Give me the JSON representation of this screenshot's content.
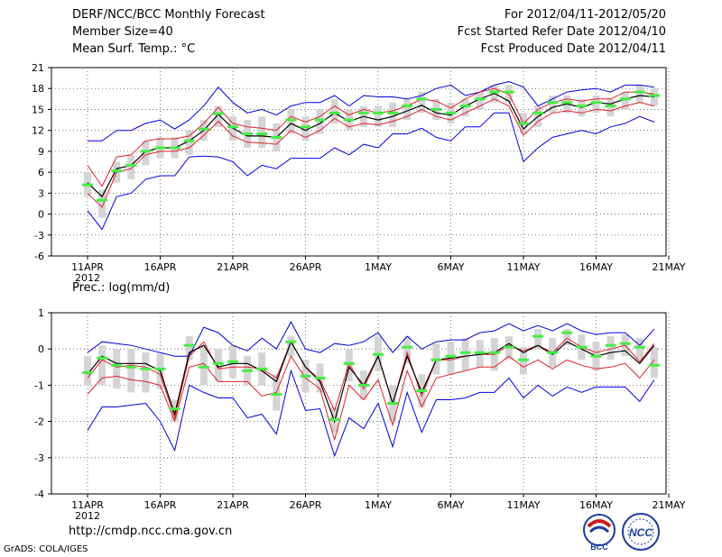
{
  "header": {
    "title": "DERF/NCC/BCC Monthly Forecast",
    "member_size": "Member Size=40",
    "variable": "Mean Surf. Temp.: °C",
    "period": "For 2012/04/11-2012/05/20",
    "started": "Fcst Started Refer Date 2012/04/10",
    "produced": "Fcst Produced Date 2012/04/11"
  },
  "footer": {
    "url": "http://cmdp.ncc.cma.gov.cn",
    "credit": "GrADS: COLA/IGES",
    "logo_left_text": "BCC",
    "logo_right_text": "NCC"
  },
  "colors": {
    "ensemble_bar": "#d4d4d4",
    "marker": "#44ee44",
    "mean_line": "#000000",
    "spread_line": "#e0202a",
    "extreme_line": "#0000dd",
    "grid": "#555555"
  },
  "chart_data": [
    {
      "type": "line",
      "title": "",
      "ylim": [
        -6,
        21
      ],
      "yticks": [
        -6,
        -3,
        0,
        3,
        6,
        9,
        12,
        15,
        18,
        21
      ],
      "xtick_labels": [
        "11APR",
        "16APR",
        "21APR",
        "26APR",
        "1MAY",
        "6MAY",
        "11MAY",
        "16MAY",
        "21MAY"
      ],
      "xtick_sublabel": "2012",
      "n_days": 40,
      "series": [
        {
          "name": "max",
          "values": [
            10.5,
            10.5,
            12,
            12,
            13,
            13.5,
            12.2,
            13.5,
            15.5,
            18.2,
            16,
            14.5,
            15,
            14.2,
            15.5,
            16,
            16,
            17,
            15.5,
            17,
            16.8,
            16.8,
            16.5,
            17,
            18,
            18.5,
            17,
            17.5,
            18.5,
            19,
            18.2,
            15.5,
            16.5,
            17.5,
            17.8,
            18,
            17.5,
            18.5,
            18.5,
            18.2
          ]
        },
        {
          "name": "upper",
          "values": [
            7,
            4,
            8.2,
            8.5,
            10.5,
            10.8,
            10.8,
            11.2,
            13,
            15.3,
            13,
            12.5,
            12.3,
            12,
            14,
            13.2,
            14,
            15.5,
            14.2,
            15,
            14.5,
            14.8,
            15.5,
            16.5,
            16.2,
            15.2,
            16.5,
            17.5,
            18,
            17.2,
            13,
            15,
            16,
            16.5,
            16.2,
            16.5,
            16.5,
            17.5,
            17.5,
            17.2
          ]
        },
        {
          "name": "mean",
          "values": [
            4.5,
            2.5,
            6.5,
            7,
            9,
            9.5,
            9.5,
            10.5,
            12,
            14.3,
            12.3,
            11.2,
            11.2,
            11,
            13,
            12,
            13,
            14.5,
            13.3,
            14,
            13.5,
            14,
            14.8,
            15.6,
            14.5,
            14.2,
            15.5,
            16.5,
            17.3,
            16.2,
            12.2,
            14,
            15.3,
            15.8,
            15.3,
            16,
            15.8,
            16.5,
            17,
            16.8
          ]
        },
        {
          "name": "lower",
          "values": [
            3,
            1,
            6,
            6.5,
            8.5,
            9,
            9,
            9.5,
            11.3,
            13.3,
            11.2,
            10.3,
            10.2,
            10,
            12,
            11,
            12,
            13.7,
            12.5,
            13,
            12.8,
            13.3,
            14,
            15,
            14,
            13.5,
            14.5,
            15.5,
            16.5,
            15.5,
            11.3,
            13.3,
            14.5,
            14.8,
            14.5,
            15,
            14.8,
            15.5,
            16,
            15.5
          ]
        },
        {
          "name": "min",
          "values": [
            0.5,
            -2.2,
            2.5,
            3,
            5,
            5.5,
            5.5,
            8.2,
            8.3,
            8.2,
            7.5,
            5.5,
            7,
            6.5,
            8,
            8,
            8,
            9.5,
            8.5,
            10,
            9.5,
            11.5,
            11.5,
            12.3,
            11,
            10.5,
            12.5,
            12.5,
            14.5,
            14.5,
            7.5,
            9.5,
            11,
            11.5,
            12,
            11.5,
            12.5,
            13,
            14,
            13.2
          ]
        },
        {
          "name": "median",
          "values": [
            4.2,
            2,
            6.2,
            7,
            9,
            9.5,
            9.5,
            10.5,
            12.2,
            14.4,
            12.5,
            11.5,
            11.5,
            11,
            13.5,
            12.5,
            13.5,
            14.5,
            13.5,
            14.5,
            14.5,
            14.5,
            15.5,
            16.5,
            15,
            14.5,
            15.5,
            16.5,
            17.5,
            17.5,
            13,
            14.5,
            16,
            16,
            15.5,
            16,
            15.5,
            16.5,
            17.5,
            17
          ]
        },
        {
          "name": "q75",
          "values": [
            6,
            3.5,
            7.5,
            8.5,
            10.5,
            11,
            11,
            12,
            13.5,
            15.5,
            14,
            13.5,
            14,
            13,
            15,
            14,
            15,
            16.5,
            15,
            15.5,
            15.5,
            16,
            16.5,
            17.5,
            16.5,
            16,
            16.5,
            17.5,
            18.5,
            18.5,
            14.5,
            15.5,
            17,
            17,
            16.5,
            17,
            16.5,
            17.5,
            18.5,
            18
          ]
        },
        {
          "name": "q25",
          "values": [
            2.5,
            -0.5,
            4.5,
            5,
            7,
            8,
            8,
            8.5,
            10.5,
            12.5,
            10.5,
            9.5,
            9.5,
            9,
            11.5,
            10.5,
            11.5,
            13,
            12,
            12.5,
            12.5,
            12.5,
            13.5,
            14.5,
            13.5,
            13,
            14,
            15,
            16,
            16,
            11.5,
            12.5,
            14.5,
            14.5,
            14,
            14.5,
            14,
            15,
            16,
            15.5
          ]
        }
      ]
    },
    {
      "type": "line",
      "title": "Prec.: log(mm/d)",
      "ylim": [
        -4,
        1
      ],
      "yticks": [
        -4,
        -3,
        -2,
        -1,
        0,
        1
      ],
      "xtick_labels": [
        "11APR",
        "16APR",
        "21APR",
        "26APR",
        "1MAY",
        "6MAY",
        "11MAY",
        "16MAY",
        "21MAY"
      ],
      "xtick_sublabel": "2012",
      "n_days": 40,
      "series": [
        {
          "name": "max",
          "values": [
            -0.1,
            0.2,
            0.15,
            0.1,
            0,
            -0.1,
            -0.2,
            -0.2,
            0.6,
            0.45,
            0.1,
            -0.05,
            0.3,
            0,
            0.75,
            0,
            -0.1,
            0.15,
            0.1,
            0.2,
            0.45,
            -0.1,
            0.35,
            0,
            0.2,
            0.25,
            0.25,
            0.45,
            0.5,
            0.7,
            0.5,
            0.65,
            0.5,
            0.7,
            0.5,
            0.4,
            0.45,
            0.45,
            0.1,
            0.55
          ]
        },
        {
          "name": "upper",
          "values": [
            -0.8,
            -0.3,
            -0.5,
            -0.45,
            -0.5,
            -0.7,
            -1.9,
            -0.2,
            0.2,
            -0.55,
            -0.5,
            -0.5,
            -0.55,
            -0.8,
            0.2,
            -0.5,
            -0.85,
            -1.7,
            -0.4,
            -1.1,
            -0.2,
            -1.5,
            -0.1,
            -1.3,
            -0.3,
            -0.3,
            -0.2,
            -0.15,
            -0.15,
            0.1,
            -0.05,
            0.1,
            -0.1,
            0.3,
            0.05,
            -0.1,
            0,
            0.1,
            -0.35,
            0.15
          ]
        },
        {
          "name": "mean",
          "values": [
            -0.7,
            -0.2,
            -0.4,
            -0.4,
            -0.4,
            -0.6,
            -1.8,
            -0.1,
            0.1,
            -0.5,
            -0.4,
            -0.4,
            -0.6,
            -0.9,
            0.2,
            -0.5,
            -0.9,
            -2.0,
            -0.5,
            -1.0,
            -0.2,
            -1.5,
            -0.2,
            -1.2,
            -0.3,
            -0.25,
            -0.2,
            -0.15,
            -0.1,
            0.15,
            -0.1,
            0.1,
            -0.15,
            0.2,
            0,
            -0.2,
            -0.1,
            -0.05,
            -0.4,
            0.1
          ]
        },
        {
          "name": "lower",
          "values": [
            -1.25,
            -0.8,
            -0.75,
            -0.85,
            -0.9,
            -1.0,
            -2.0,
            -0.5,
            -0.4,
            -0.9,
            -0.9,
            -0.9,
            -1.3,
            -1.2,
            -0.2,
            -0.8,
            -1.1,
            -2.5,
            -1.0,
            -1.4,
            -0.85,
            -2.1,
            -0.6,
            -1.6,
            -0.8,
            -0.7,
            -0.6,
            -0.5,
            -0.5,
            -0.2,
            -0.5,
            -0.3,
            -0.55,
            -0.3,
            -0.45,
            -0.55,
            -0.5,
            -0.4,
            -0.8,
            -0.3
          ]
        },
        {
          "name": "min",
          "values": [
            -2.25,
            -1.6,
            -1.6,
            -1.55,
            -1.5,
            -2.0,
            -2.8,
            -1.0,
            -1.2,
            -1.35,
            -1.35,
            -1.9,
            -1.8,
            -2.35,
            -0.6,
            -1.7,
            -1.65,
            -2.95,
            -1.9,
            -2.2,
            -1.5,
            -2.7,
            -1.2,
            -2.3,
            -1.4,
            -1.4,
            -1.35,
            -1.2,
            -1.2,
            -0.8,
            -1.35,
            -1.0,
            -1.3,
            -1.05,
            -1.2,
            -1.05,
            -1.05,
            -1.05,
            -1.45,
            -0.85
          ]
        },
        {
          "name": "median",
          "values": [
            -0.65,
            -0.25,
            -0.45,
            -0.5,
            -0.55,
            -0.55,
            -1.65,
            0.1,
            -0.5,
            -0.4,
            -0.35,
            -0.6,
            -0.55,
            -1.25,
            0.2,
            -0.75,
            -0.8,
            -1.95,
            -0.4,
            -1.0,
            -0.15,
            -1.5,
            0.05,
            -1.15,
            -0.3,
            -0.2,
            -0.1,
            -0.1,
            -0.1,
            0.05,
            -0.3,
            0.35,
            -0.1,
            0.45,
            0.05,
            -0.2,
            0.1,
            0.15,
            0.05,
            -0.45
          ]
        },
        {
          "name": "q75",
          "values": [
            -0.2,
            0.1,
            0,
            0,
            -0.1,
            -0.1,
            -1.4,
            0.35,
            0.1,
            0,
            0.1,
            -0.2,
            -0.1,
            -0.7,
            0.35,
            -0.3,
            -0.4,
            -1.6,
            0,
            -0.6,
            0.35,
            -1.0,
            0.35,
            -0.7,
            0.15,
            0.2,
            0.3,
            0.25,
            0.3,
            0.35,
            0.05,
            0.55,
            0.3,
            0.55,
            0.4,
            0.2,
            0.35,
            0.4,
            0.3,
            0.05
          ]
        },
        {
          "name": "q25",
          "values": [
            -1.0,
            -1.0,
            -1.1,
            -1.2,
            -1.2,
            -1.1,
            -2.0,
            -0.3,
            -1.0,
            -0.9,
            -0.8,
            -1.0,
            -1.0,
            -1.7,
            -0.2,
            -1.2,
            -1.2,
            -2.3,
            -0.9,
            -1.4,
            -0.6,
            -2.0,
            -0.4,
            -1.6,
            -0.7,
            -0.7,
            -0.6,
            -0.5,
            -0.6,
            -0.3,
            -0.7,
            0,
            -0.5,
            0.1,
            -0.3,
            -0.6,
            -0.3,
            -0.2,
            -0.3,
            -0.8
          ]
        }
      ]
    }
  ]
}
